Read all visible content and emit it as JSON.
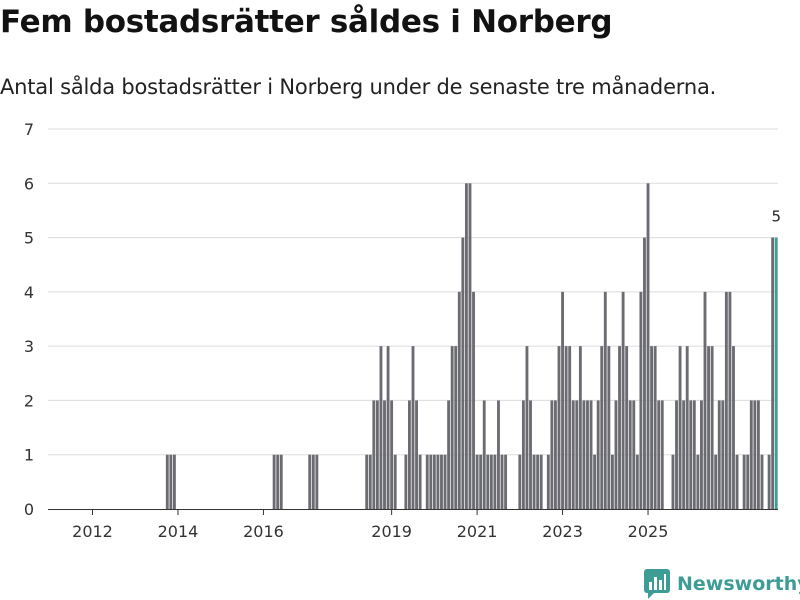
{
  "title": "Fem bostadsrätter såldes i Norberg",
  "subtitle": "Antal sålda bostadsrätter i Norberg under de senaste tre månaderna.",
  "brand": {
    "name": "Newsworthy",
    "color": "#3d9c95"
  },
  "chart_data": {
    "type": "bar",
    "title": "Fem bostadsrätter såldes i Norberg",
    "xlabel": "",
    "ylabel": "",
    "ylim": [
      0,
      7
    ],
    "grid": true,
    "y_ticks": [
      "0",
      "1",
      "2",
      "3",
      "4",
      "5",
      "6",
      "7"
    ],
    "x_ticks": [
      {
        "label": "2012",
        "date": "2012-01"
      },
      {
        "label": "2014",
        "date": "2014-01"
      },
      {
        "label": "2016",
        "date": "2016-01"
      },
      {
        "label": "2019",
        "date": "2019-01"
      },
      {
        "label": "2021",
        "date": "2021-01"
      },
      {
        "label": "2023",
        "date": "2023-01"
      },
      {
        "label": "2025",
        "date": "2025-01"
      }
    ],
    "colors": {
      "bar": "#6b6b72",
      "highlight": "#3d9c95"
    },
    "series": [
      {
        "name": "Antal sålda bostadsrätter",
        "start": "2011-01",
        "frequency": "monthly",
        "values": [
          0,
          0,
          0,
          0,
          0,
          0,
          0,
          0,
          0,
          0,
          0,
          0,
          0,
          0,
          0,
          0,
          0,
          0,
          0,
          0,
          0,
          0,
          0,
          0,
          0,
          0,
          0,
          0,
          0,
          0,
          0,
          0,
          0,
          1,
          1,
          1,
          0,
          0,
          0,
          0,
          0,
          0,
          0,
          0,
          0,
          0,
          0,
          0,
          0,
          0,
          0,
          0,
          0,
          0,
          0,
          0,
          0,
          0,
          0,
          0,
          0,
          0,
          0,
          1,
          1,
          1,
          0,
          0,
          0,
          0,
          0,
          0,
          0,
          1,
          1,
          1,
          0,
          0,
          0,
          0,
          0,
          0,
          0,
          0,
          0,
          0,
          0,
          0,
          0,
          1,
          1,
          2,
          2,
          3,
          2,
          3,
          2,
          1,
          0,
          0,
          1,
          2,
          3,
          2,
          1,
          0,
          1,
          1,
          1,
          1,
          1,
          1,
          2,
          3,
          3,
          4,
          5,
          6,
          6,
          4,
          1,
          1,
          2,
          1,
          1,
          1,
          2,
          1,
          1,
          0,
          0,
          0,
          1,
          2,
          3,
          2,
          1,
          1,
          1,
          0,
          1,
          2,
          2,
          3,
          4,
          3,
          3,
          2,
          2,
          3,
          2,
          2,
          2,
          1,
          2,
          3,
          4,
          3,
          1,
          2,
          3,
          4,
          3,
          2,
          2,
          1,
          4,
          5,
          6,
          3,
          3,
          2,
          2,
          0,
          0,
          1,
          2,
          3,
          2,
          3,
          2,
          2,
          1,
          2,
          4,
          3,
          3,
          1,
          2,
          2,
          4,
          4,
          3,
          1,
          0,
          1,
          1,
          2,
          2,
          2,
          1,
          0,
          1,
          5,
          5
        ],
        "last_label": "5"
      }
    ]
  }
}
